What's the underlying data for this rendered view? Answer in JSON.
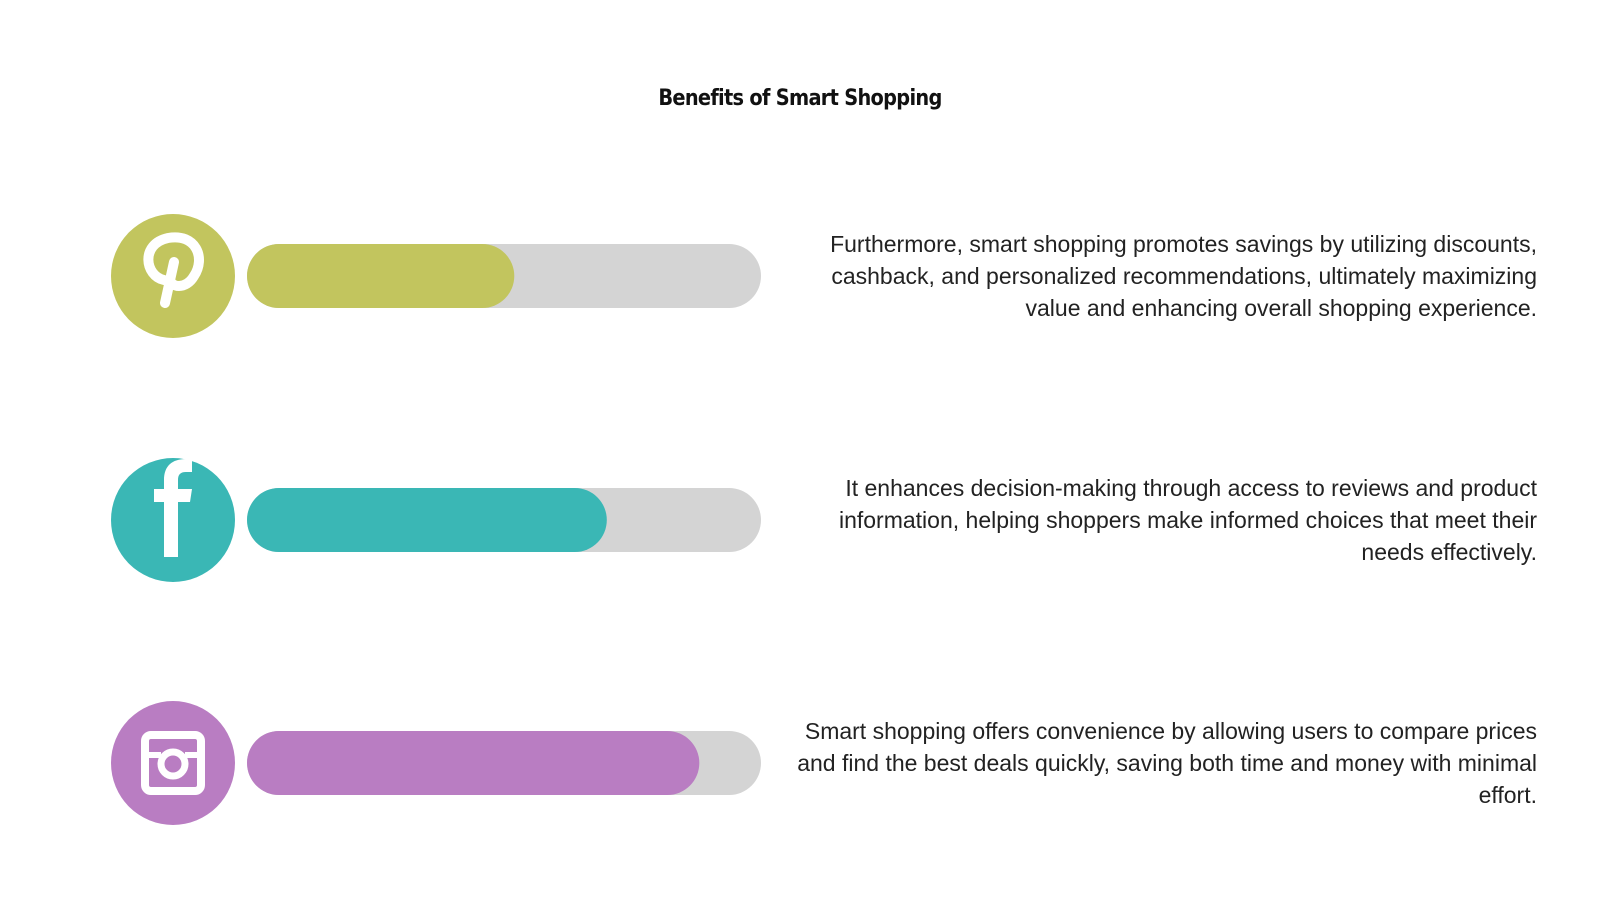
{
  "title": "Benefits of Smart Shopping",
  "progress_range": [
    0,
    100
  ],
  "items": [
    {
      "text": "Furthermore, smart shopping promotes savings by utilizing discounts, cashback, and personalized recommendations, ultimately maximizing value and enhancing overall shopping experience.",
      "color": "#c2c55e",
      "progress": 52
    },
    {
      "text": "It enhances decision-making through access to reviews and product information, helping shoppers make informed choices that meet their needs effectively.",
      "color": "#3ab7b5",
      "progress": 70
    },
    {
      "text": "Smart shopping offers convenience by allowing users to compare prices and find the best deals quickly, saving both time and money with minimal effort.",
      "color": "#b97dc2",
      "progress": 88
    }
  ]
}
